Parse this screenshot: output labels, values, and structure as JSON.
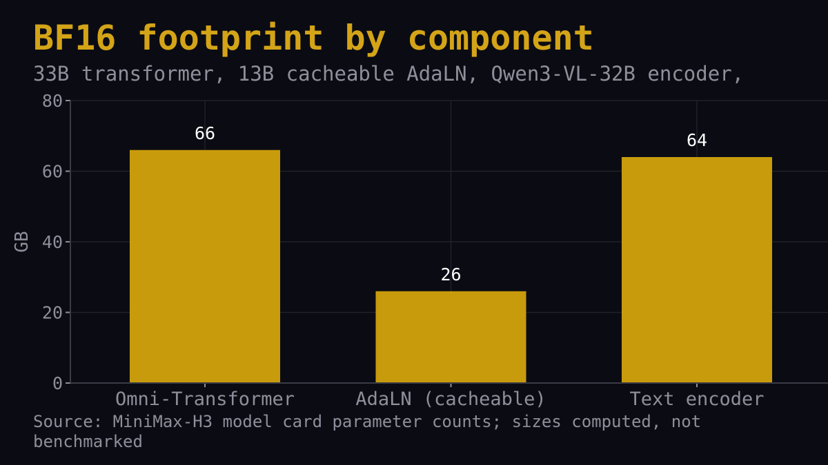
{
  "colors": {
    "background": "#0b0c13",
    "title": "#d4a418",
    "muted_text": "#8f8f9c",
    "bar": "#c89b0c",
    "data_label": "#ffffff",
    "grid": "#23242d",
    "axis": "#3a3b45"
  },
  "chart_data": {
    "type": "bar",
    "title": "BF16 footprint by component",
    "subtitle": "33B transformer, 13B cacheable AdaLN, Qwen3-VL-32B encoder,",
    "xlabel": "",
    "ylabel": "GB",
    "categories": [
      "Omni-Transformer",
      "AdaLN (cacheable)",
      "Text encoder"
    ],
    "values": [
      66,
      26,
      64
    ],
    "data_labels": [
      "66",
      "26",
      "64"
    ],
    "ylim": [
      0,
      80
    ],
    "yticks": [
      0,
      20,
      40,
      60,
      80
    ],
    "grid": true,
    "legend": "none",
    "source": "Source: MiniMax-H3 model card parameter counts; sizes computed, not benchmarked"
  }
}
